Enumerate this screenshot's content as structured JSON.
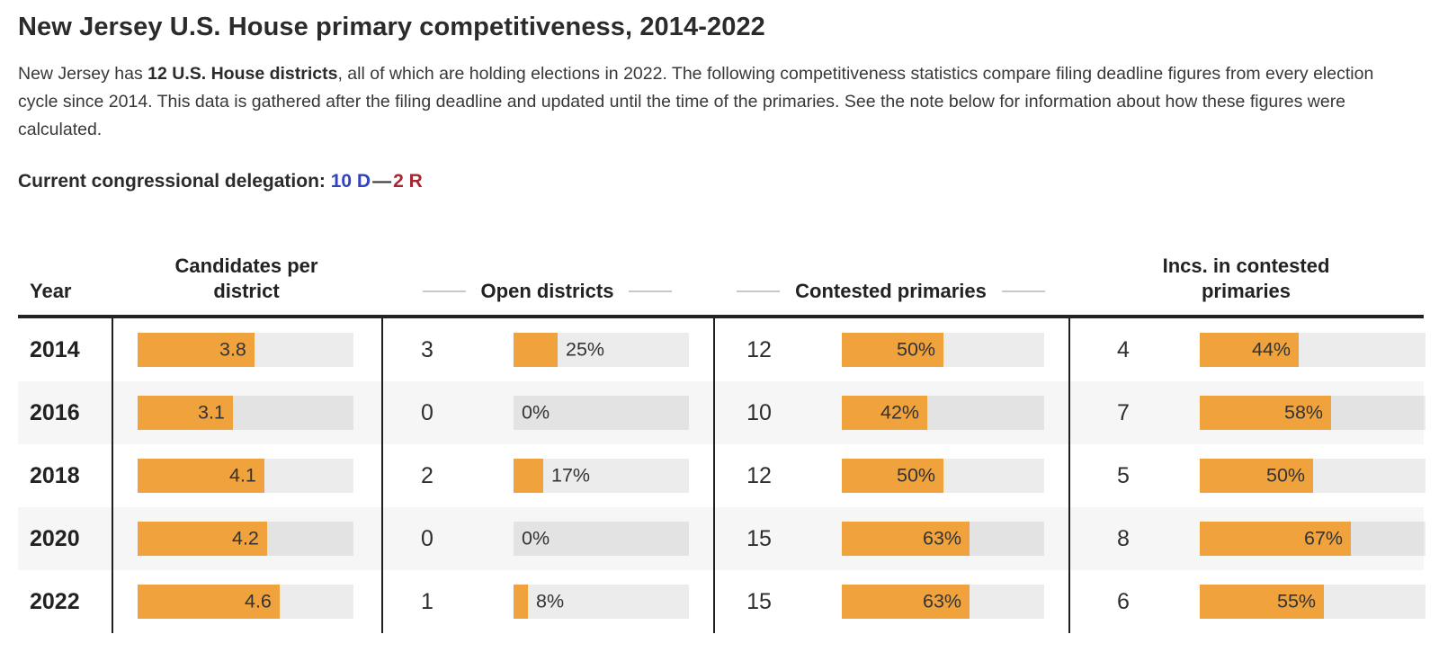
{
  "page": {
    "title": "New Jersey U.S. House primary competitiveness, 2014-2022",
    "intro": {
      "pre": "New Jersey has ",
      "bold": "12 U.S. House districts",
      "post": ", all of which are holding elections in 2022. The following competitiveness statistics compare filing deadline figures from every election cycle since 2014. This data is gathered after the filing deadline and updated until the time of the primaries. See the note below for information about how these figures were calculated."
    },
    "delegation": {
      "label": "Current congressional delegation:",
      "dem": "10 D",
      "separator": "—",
      "rep": "2 R",
      "dem_color": "#3143BF",
      "rep_color": "#A92531"
    }
  },
  "table": {
    "headers": [
      "Year",
      "Candidates per district",
      "Open districts",
      "Contested primaries",
      "Incs. in contested primaries"
    ],
    "rows": [
      {
        "year": "2014",
        "cpd": "3.8",
        "open_count": "3",
        "open_pct": "25%",
        "contested_count": "12",
        "contested_pct": "50%",
        "incs_count": "4",
        "incs_pct": "44%"
      },
      {
        "year": "2016",
        "cpd": "3.1",
        "open_count": "0",
        "open_pct": "0%",
        "contested_count": "10",
        "contested_pct": "42%",
        "incs_count": "7",
        "incs_pct": "58%"
      },
      {
        "year": "2018",
        "cpd": "4.1",
        "open_count": "2",
        "open_pct": "17%",
        "contested_count": "12",
        "contested_pct": "50%",
        "incs_count": "5",
        "incs_pct": "50%"
      },
      {
        "year": "2020",
        "cpd": "4.2",
        "open_count": "0",
        "open_pct": "0%",
        "contested_count": "15",
        "contested_pct": "63%",
        "incs_count": "8",
        "incs_pct": "67%"
      },
      {
        "year": "2022",
        "cpd": "4.6",
        "open_count": "1",
        "open_pct": "8%",
        "contested_count": "15",
        "contested_pct": "63%",
        "incs_count": "6",
        "incs_pct": "55%"
      }
    ]
  },
  "chart_data": {
    "type": "table",
    "title": "New Jersey U.S. House primary competitiveness, 2014-2022",
    "categories": [
      "2014",
      "2016",
      "2018",
      "2020",
      "2022"
    ],
    "series": [
      {
        "name": "Candidates per district",
        "values": [
          3.8,
          3.1,
          4.1,
          4.2,
          4.6
        ]
      },
      {
        "name": "Open districts (count)",
        "values": [
          3,
          0,
          2,
          0,
          1
        ]
      },
      {
        "name": "Open districts (%)",
        "values": [
          25,
          0,
          17,
          0,
          8
        ]
      },
      {
        "name": "Contested primaries (count)",
        "values": [
          12,
          10,
          12,
          15,
          15
        ]
      },
      {
        "name": "Contested primaries (%)",
        "values": [
          50,
          42,
          50,
          63,
          63
        ]
      },
      {
        "name": "Incumbents in contested primaries (count)",
        "values": [
          4,
          7,
          5,
          8,
          6
        ]
      },
      {
        "name": "Incumbents in contested primaries (%)",
        "values": [
          44,
          58,
          50,
          67,
          55
        ]
      }
    ],
    "bar_color": "#F0A33C",
    "track_color": "#EBEBEB",
    "cpd_axis_max": 7,
    "pct_axis_range": [
      0,
      100
    ],
    "legend_position": "none",
    "grid": false
  }
}
